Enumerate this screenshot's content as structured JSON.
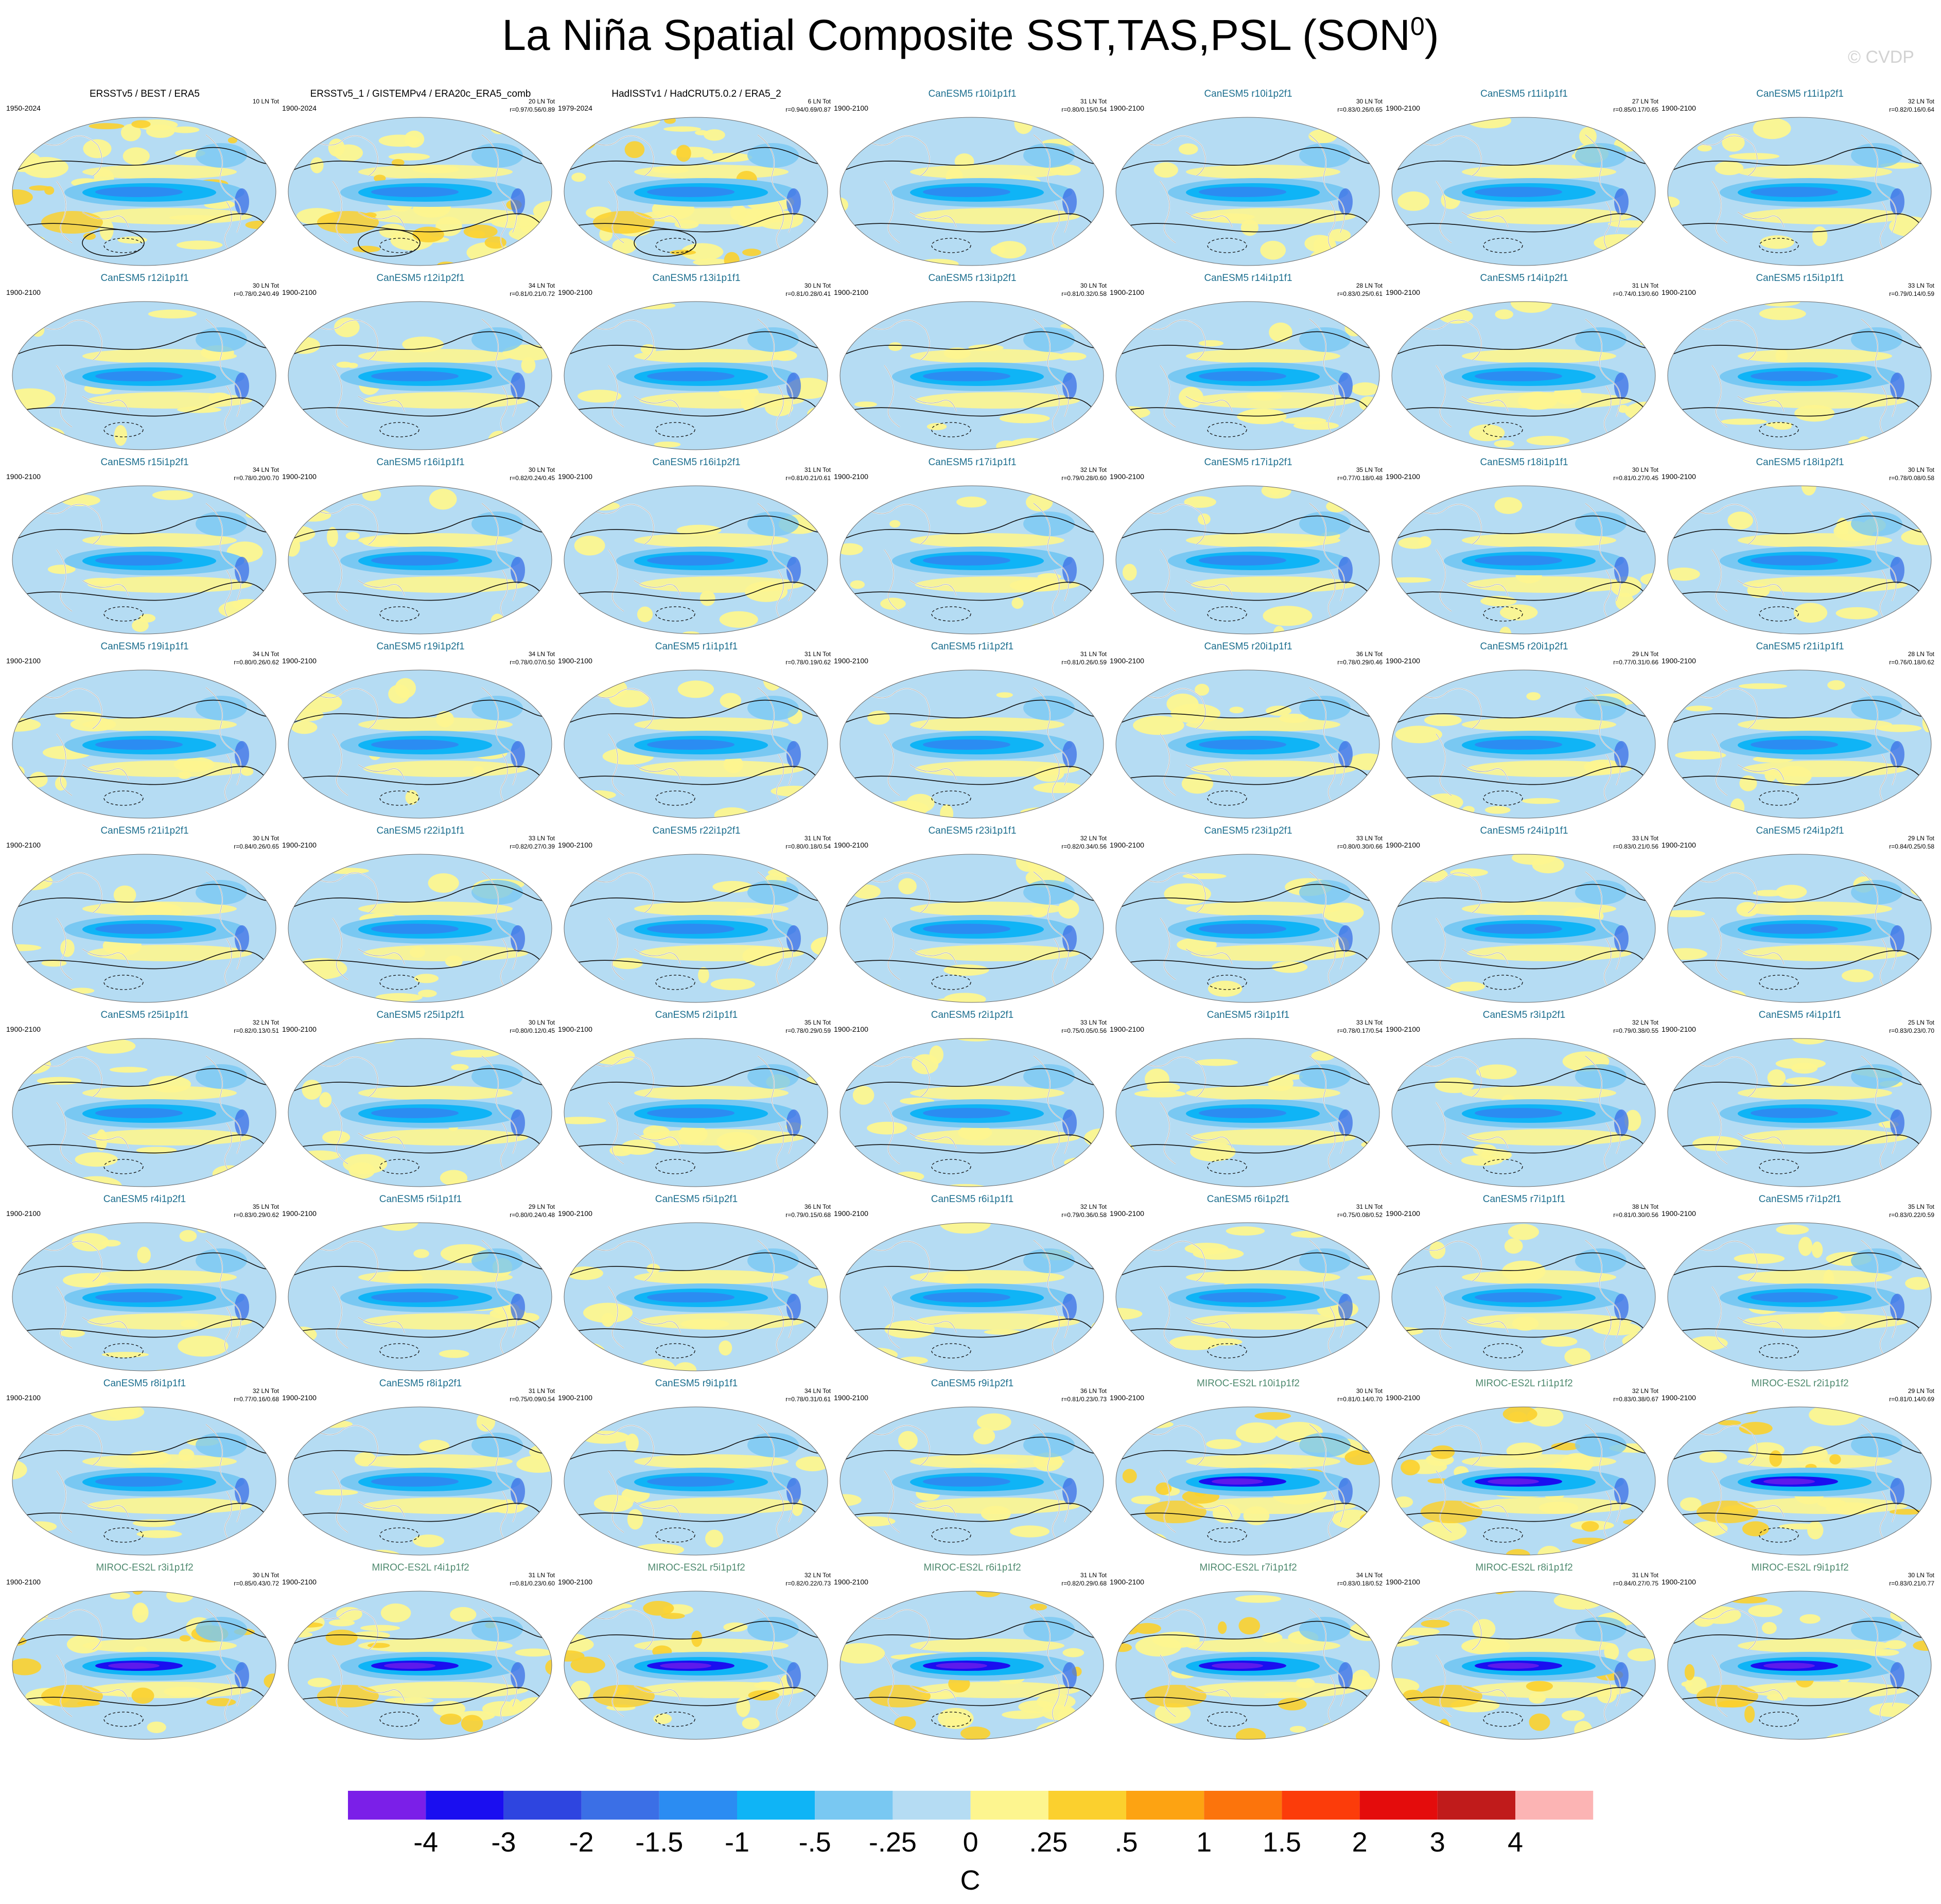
{
  "title": "La Niña Spatial Composite SST,TAS,PSL (SON",
  "title_sup": "0",
  "title_end": ")",
  "credit": "© CVDP",
  "colorbar": {
    "labels": [
      "-4",
      "-3",
      "-2",
      "-1.5",
      "-1",
      "-.5",
      "-.25",
      "0",
      ".25",
      ".5",
      "1",
      "1.5",
      "2",
      "3",
      "4"
    ],
    "units": "C",
    "colors": [
      "#7b1fe8",
      "#1a0ef0",
      "#2e45e0",
      "#3b6fe6",
      "#2b8cf2",
      "#0fb4f6",
      "#79c8f2",
      "#b5dcf3",
      "#fdf58f",
      "#fbd02e",
      "#fda312",
      "#fc740c",
      "#fc3c0a",
      "#e40c0c",
      "#c01b1b",
      "#fcb4b4"
    ]
  },
  "panels": [
    {
      "name": "ERSSTv5 / BEST / ERA5",
      "years": "1950-2024",
      "count": "10 LN Tot",
      "stats": "",
      "group": "obs"
    },
    {
      "name": "ERSSTv5_1 / GISTEMPv4 / ERA20c_ERA5_comb",
      "years": "1900-2024",
      "count": "20 LN Tot",
      "stats": "r=0.97/0.56/0.89",
      "group": "obs"
    },
    {
      "name": "HadISSTv1 / HadCRUT5.0.2 / ERA5_2",
      "years": "1979-2024",
      "count": "6 LN Tot",
      "stats": "r=0.94/0.69/0.87",
      "group": "obs"
    },
    {
      "name": "CanESM5 r10i1p1f1",
      "years": "1900-2100",
      "count": "31 LN Tot",
      "stats": "r=0.80/0.15/0.54",
      "group": "can"
    },
    {
      "name": "CanESM5 r10i1p2f1",
      "years": "1900-2100",
      "count": "30 LN Tot",
      "stats": "r=0.83/0.26/0.65",
      "group": "can"
    },
    {
      "name": "CanESM5 r11i1p1f1",
      "years": "1900-2100",
      "count": "27 LN Tot",
      "stats": "r=0.85/0.17/0.65",
      "group": "can"
    },
    {
      "name": "CanESM5 r11i1p2f1",
      "years": "1900-2100",
      "count": "32 LN Tot",
      "stats": "r=0.82/0.16/0.64",
      "group": "can"
    },
    {
      "name": "CanESM5 r12i1p1f1",
      "years": "1900-2100",
      "count": "30 LN Tot",
      "stats": "r=0.78/0.24/0.49",
      "group": "can"
    },
    {
      "name": "CanESM5 r12i1p2f1",
      "years": "1900-2100",
      "count": "34 LN Tot",
      "stats": "r=0.81/0.21/0.72",
      "group": "can"
    },
    {
      "name": "CanESM5 r13i1p1f1",
      "years": "1900-2100",
      "count": "30 LN Tot",
      "stats": "r=0.81/0.28/0.41",
      "group": "can"
    },
    {
      "name": "CanESM5 r13i1p2f1",
      "years": "1900-2100",
      "count": "30 LN Tot",
      "stats": "r=0.81/0.32/0.58",
      "group": "can"
    },
    {
      "name": "CanESM5 r14i1p1f1",
      "years": "1900-2100",
      "count": "28 LN Tot",
      "stats": "r=0.83/0.25/0.61",
      "group": "can"
    },
    {
      "name": "CanESM5 r14i1p2f1",
      "years": "1900-2100",
      "count": "31 LN Tot",
      "stats": "r=0.74/0.13/0.60",
      "group": "can"
    },
    {
      "name": "CanESM5 r15i1p1f1",
      "years": "1900-2100",
      "count": "33 LN Tot",
      "stats": "r=0.79/0.14/0.59",
      "group": "can"
    },
    {
      "name": "CanESM5 r15i1p2f1",
      "years": "1900-2100",
      "count": "34 LN Tot",
      "stats": "r=0.78/0.20/0.70",
      "group": "can"
    },
    {
      "name": "CanESM5 r16i1p1f1",
      "years": "1900-2100",
      "count": "30 LN Tot",
      "stats": "r=0.82/0.24/0.45",
      "group": "can"
    },
    {
      "name": "CanESM5 r16i1p2f1",
      "years": "1900-2100",
      "count": "31 LN Tot",
      "stats": "r=0.81/0.21/0.61",
      "group": "can"
    },
    {
      "name": "CanESM5 r17i1p1f1",
      "years": "1900-2100",
      "count": "32 LN Tot",
      "stats": "r=0.79/0.28/0.60",
      "group": "can"
    },
    {
      "name": "CanESM5 r17i1p2f1",
      "years": "1900-2100",
      "count": "35 LN Tot",
      "stats": "r=0.77/0.18/0.48",
      "group": "can"
    },
    {
      "name": "CanESM5 r18i1p1f1",
      "years": "1900-2100",
      "count": "30 LN Tot",
      "stats": "r=0.81/0.27/0.45",
      "group": "can"
    },
    {
      "name": "CanESM5 r18i1p2f1",
      "years": "1900-2100",
      "count": "30 LN Tot",
      "stats": "r=0.78/0.08/0.58",
      "group": "can"
    },
    {
      "name": "CanESM5 r19i1p1f1",
      "years": "1900-2100",
      "count": "34 LN Tot",
      "stats": "r=0.80/0.26/0.62",
      "group": "can"
    },
    {
      "name": "CanESM5 r19i1p2f1",
      "years": "1900-2100",
      "count": "34 LN Tot",
      "stats": "r=0.78/0.07/0.50",
      "group": "can"
    },
    {
      "name": "CanESM5 r1i1p1f1",
      "years": "1900-2100",
      "count": "31 LN Tot",
      "stats": "r=0.78/0.19/0.62",
      "group": "can"
    },
    {
      "name": "CanESM5 r1i1p2f1",
      "years": "1900-2100",
      "count": "31 LN Tot",
      "stats": "r=0.81/0.26/0.59",
      "group": "can"
    },
    {
      "name": "CanESM5 r20i1p1f1",
      "years": "1900-2100",
      "count": "36 LN Tot",
      "stats": "r=0.78/0.29/0.46",
      "group": "can"
    },
    {
      "name": "CanESM5 r20i1p2f1",
      "years": "1900-2100",
      "count": "29 LN Tot",
      "stats": "r=0.77/0.31/0.66",
      "group": "can"
    },
    {
      "name": "CanESM5 r21i1p1f1",
      "years": "1900-2100",
      "count": "28 LN Tot",
      "stats": "r=0.76/0.18/0.62",
      "group": "can"
    },
    {
      "name": "CanESM5 r21i1p2f1",
      "years": "1900-2100",
      "count": "30 LN Tot",
      "stats": "r=0.84/0.26/0.65",
      "group": "can"
    },
    {
      "name": "CanESM5 r22i1p1f1",
      "years": "1900-2100",
      "count": "33 LN Tot",
      "stats": "r=0.82/0.27/0.39",
      "group": "can"
    },
    {
      "name": "CanESM5 r22i1p2f1",
      "years": "1900-2100",
      "count": "31 LN Tot",
      "stats": "r=0.80/0.18/0.54",
      "group": "can"
    },
    {
      "name": "CanESM5 r23i1p1f1",
      "years": "1900-2100",
      "count": "32 LN Tot",
      "stats": "r=0.82/0.34/0.56",
      "group": "can"
    },
    {
      "name": "CanESM5 r23i1p2f1",
      "years": "1900-2100",
      "count": "33 LN Tot",
      "stats": "r=0.80/0.30/0.66",
      "group": "can"
    },
    {
      "name": "CanESM5 r24i1p1f1",
      "years": "1900-2100",
      "count": "33 LN Tot",
      "stats": "r=0.83/0.21/0.56",
      "group": "can"
    },
    {
      "name": "CanESM5 r24i1p2f1",
      "years": "1900-2100",
      "count": "29 LN Tot",
      "stats": "r=0.84/0.25/0.58",
      "group": "can"
    },
    {
      "name": "CanESM5 r25i1p1f1",
      "years": "1900-2100",
      "count": "32 LN Tot",
      "stats": "r=0.82/0.13/0.51",
      "group": "can"
    },
    {
      "name": "CanESM5 r25i1p2f1",
      "years": "1900-2100",
      "count": "30 LN Tot",
      "stats": "r=0.80/0.12/0.45",
      "group": "can"
    },
    {
      "name": "CanESM5 r2i1p1f1",
      "years": "1900-2100",
      "count": "35 LN Tot",
      "stats": "r=0.78/0.29/0.59",
      "group": "can"
    },
    {
      "name": "CanESM5 r2i1p2f1",
      "years": "1900-2100",
      "count": "33 LN Tot",
      "stats": "r=0.75/0.05/0.56",
      "group": "can"
    },
    {
      "name": "CanESM5 r3i1p1f1",
      "years": "1900-2100",
      "count": "33 LN Tot",
      "stats": "r=0.78/0.17/0.54",
      "group": "can"
    },
    {
      "name": "CanESM5 r3i1p2f1",
      "years": "1900-2100",
      "count": "32 LN Tot",
      "stats": "r=0.79/0.38/0.55",
      "group": "can"
    },
    {
      "name": "CanESM5 r4i1p1f1",
      "years": "1900-2100",
      "count": "25 LN Tot",
      "stats": "r=0.83/0.23/0.70",
      "group": "can"
    },
    {
      "name": "CanESM5 r4i1p2f1",
      "years": "1900-2100",
      "count": "35 LN Tot",
      "stats": "r=0.83/0.29/0.62",
      "group": "can"
    },
    {
      "name": "CanESM5 r5i1p1f1",
      "years": "1900-2100",
      "count": "29 LN Tot",
      "stats": "r=0.80/0.24/0.48",
      "group": "can"
    },
    {
      "name": "CanESM5 r5i1p2f1",
      "years": "1900-2100",
      "count": "36 LN Tot",
      "stats": "r=0.79/0.15/0.68",
      "group": "can"
    },
    {
      "name": "CanESM5 r6i1p1f1",
      "years": "1900-2100",
      "count": "32 LN Tot",
      "stats": "r=0.79/0.36/0.58",
      "group": "can"
    },
    {
      "name": "CanESM5 r6i1p2f1",
      "years": "1900-2100",
      "count": "31 LN Tot",
      "stats": "r=0.75/0.08/0.52",
      "group": "can"
    },
    {
      "name": "CanESM5 r7i1p1f1",
      "years": "1900-2100",
      "count": "38 LN Tot",
      "stats": "r=0.81/0.30/0.56",
      "group": "can"
    },
    {
      "name": "CanESM5 r7i1p2f1",
      "years": "1900-2100",
      "count": "35 LN Tot",
      "stats": "r=0.83/0.22/0.59",
      "group": "can"
    },
    {
      "name": "CanESM5 r8i1p1f1",
      "years": "1900-2100",
      "count": "32 LN Tot",
      "stats": "r=0.77/0.16/0.68",
      "group": "can"
    },
    {
      "name": "CanESM5 r8i1p2f1",
      "years": "1900-2100",
      "count": "31 LN Tot",
      "stats": "r=0.75/0.09/0.54",
      "group": "can"
    },
    {
      "name": "CanESM5 r9i1p1f1",
      "years": "1900-2100",
      "count": "34 LN Tot",
      "stats": "r=0.78/0.31/0.61",
      "group": "can"
    },
    {
      "name": "CanESM5 r9i1p2f1",
      "years": "1900-2100",
      "count": "36 LN Tot",
      "stats": "r=0.81/0.23/0.73",
      "group": "can"
    },
    {
      "name": "MIROC-ES2L r10i1p1f2",
      "years": "1900-2100",
      "count": "30 LN Tot",
      "stats": "r=0.81/0.14/0.70",
      "group": "mir"
    },
    {
      "name": "MIROC-ES2L r1i1p1f2",
      "years": "1900-2100",
      "count": "32 LN Tot",
      "stats": "r=0.83/0.38/0.67",
      "group": "mir"
    },
    {
      "name": "MIROC-ES2L r2i1p1f2",
      "years": "1900-2100",
      "count": "29 LN Tot",
      "stats": "r=0.81/0.14/0.69",
      "group": "mir"
    },
    {
      "name": "MIROC-ES2L r3i1p1f2",
      "years": "1900-2100",
      "count": "30 LN Tot",
      "stats": "r=0.85/0.43/0.72",
      "group": "mir"
    },
    {
      "name": "MIROC-ES2L r4i1p1f2",
      "years": "1900-2100",
      "count": "31 LN Tot",
      "stats": "r=0.81/0.23/0.60",
      "group": "mir"
    },
    {
      "name": "MIROC-ES2L r5i1p1f2",
      "years": "1900-2100",
      "count": "32 LN Tot",
      "stats": "r=0.82/0.22/0.73",
      "group": "mir"
    },
    {
      "name": "MIROC-ES2L r6i1p1f2",
      "years": "1900-2100",
      "count": "31 LN Tot",
      "stats": "r=0.82/0.29/0.68",
      "group": "mir"
    },
    {
      "name": "MIROC-ES2L r7i1p1f2",
      "years": "1900-2100",
      "count": "34 LN Tot",
      "stats": "r=0.83/0.18/0.52",
      "group": "mir"
    },
    {
      "name": "MIROC-ES2L r8i1p1f2",
      "years": "1900-2100",
      "count": "31 LN Tot",
      "stats": "r=0.84/0.27/0.75",
      "group": "mir"
    },
    {
      "name": "MIROC-ES2L r9i1p1f2",
      "years": "1900-2100",
      "count": "30 LN Tot",
      "stats": "r=0.83/0.21/0.77",
      "group": "mir"
    }
  ]
}
